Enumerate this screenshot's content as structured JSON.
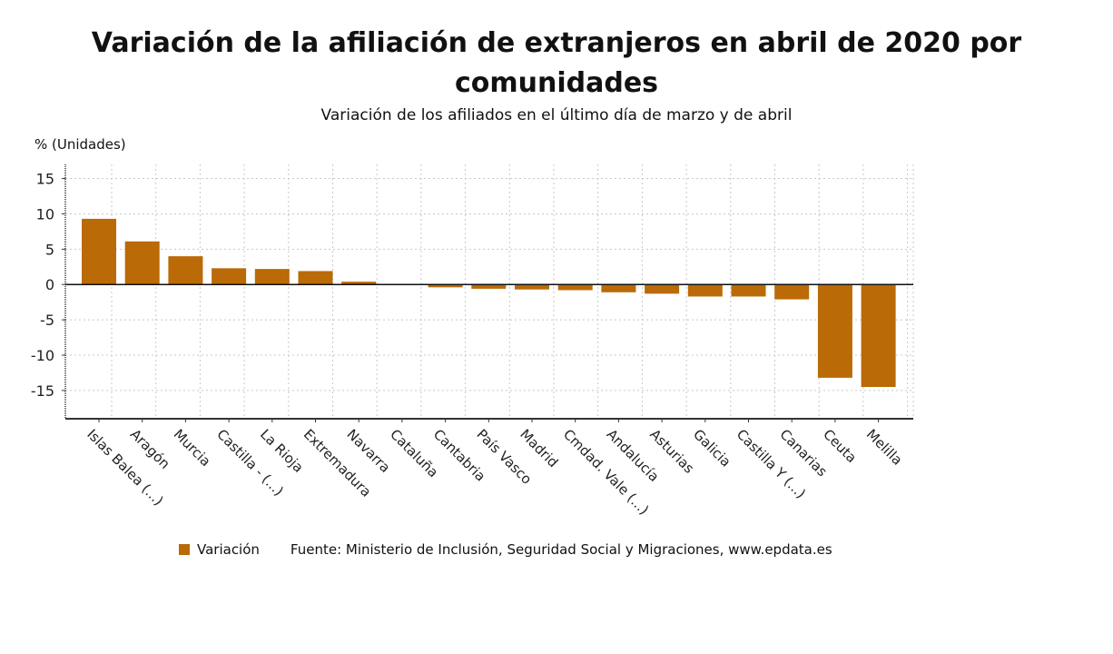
{
  "chart_data": {
    "type": "bar",
    "title": "Variación de la afiliación de extranjeros en abril de 2020 por comunidades",
    "subtitle": "Variación de los afiliados en el último día de marzo y de abril",
    "ylabel": "% (Unidades)",
    "xlabel": "",
    "categories": [
      "Islas Balea (...)",
      "Aragón",
      "Murcia",
      "Castilla - (...)",
      "La Rioja",
      "Extremadura",
      "Navarra",
      "Cataluña",
      "Cantabria",
      "País Vasco",
      "Madrid",
      "Cmdad. Vale (...)",
      "Andalucía",
      "Asturias",
      "Galicia",
      "Castilla Y (...)",
      "Canarias",
      "Ceuta",
      "Melilla"
    ],
    "series": [
      {
        "name": "Variación",
        "values": [
          9.3,
          6.1,
          4.0,
          2.3,
          2.2,
          1.9,
          0.4,
          0.0,
          -0.4,
          -0.6,
          -0.7,
          -0.8,
          -1.1,
          -1.3,
          -1.7,
          -1.7,
          -2.1,
          -13.2,
          -14.5
        ]
      }
    ],
    "ylim": [
      -19,
      17
    ],
    "yticks": [
      15,
      10,
      5,
      0,
      -5,
      -10,
      -15
    ],
    "grid": true,
    "legend_position": "bottom",
    "bar_color": "#BA6A06",
    "source": "Fuente: Ministerio de Inclusión, Seguridad Social y Migraciones, www.epdata.es"
  }
}
